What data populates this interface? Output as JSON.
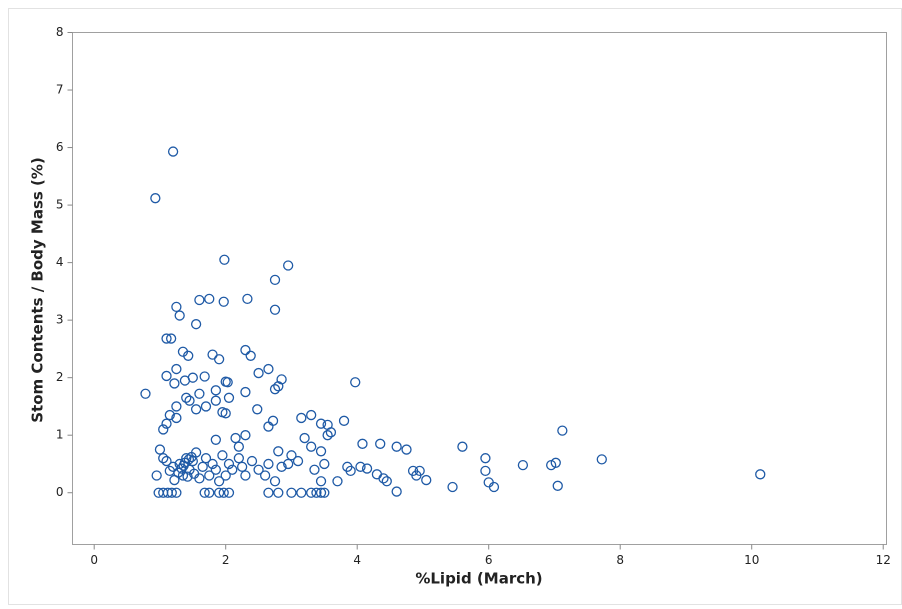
{
  "chart_data": {
    "type": "scatter",
    "x_label": "%Lipid (March)",
    "y_label": "Stom Contents / Body Mass (%)",
    "color": "#1f5aa6",
    "xlim": [
      -0.33,
      12.05
    ],
    "ylim": [
      -0.9,
      8
    ],
    "xticks": [
      0,
      2,
      4,
      6,
      8,
      10,
      12
    ],
    "yticks": [
      0,
      1,
      2,
      3,
      4,
      5,
      6,
      7,
      8
    ],
    "x": [
      0.93,
      1.2,
      1.98,
      2.95,
      2.75,
      2.33,
      1.25,
      1.3,
      1.6,
      1.75,
      1.97,
      2.75,
      1.55,
      1.1,
      1.17,
      1.35,
      1.43,
      1.8,
      1.9,
      2.3,
      2.38,
      2.65,
      2.5,
      1.25,
      1.1,
      1.5,
      1.68,
      2.0,
      2.03,
      1.22,
      1.38,
      2.8,
      2.85,
      2.75,
      0.78,
      3.97,
      2.3,
      1.85,
      1.6,
      1.4,
      1.45,
      1.85,
      2.05,
      1.25,
      1.7,
      1.55,
      2.48,
      1.95,
      2.0,
      1.15,
      1.25,
      3.3,
      3.15,
      3.8,
      2.72,
      1.1,
      1.05,
      2.65,
      3.45,
      3.55,
      7.12,
      3.55,
      3.6,
      2.15,
      2.3,
      1.85,
      3.2,
      4.08,
      4.35,
      4.6,
      4.75,
      5.6,
      5.95,
      3.0,
      3.3,
      3.45,
      2.8,
      2.2,
      1.0,
      1.05,
      0.95,
      1.1,
      1.2,
      1.3,
      1.35,
      1.4,
      1.45,
      1.5,
      1.55,
      1.6,
      1.65,
      1.7,
      1.75,
      1.8,
      1.85,
      1.9,
      1.95,
      2.0,
      2.05,
      2.1,
      2.2,
      2.25,
      2.3,
      2.4,
      2.5,
      2.6,
      2.65,
      2.75,
      2.85,
      2.95,
      3.1,
      3.35,
      3.45,
      3.5,
      3.7,
      3.85,
      3.9,
      4.05,
      4.15,
      4.3,
      4.4,
      4.45,
      4.6,
      4.85,
      4.9,
      4.95,
      5.05,
      5.45,
      5.95,
      6.0,
      6.08,
      6.52,
      6.95,
      7.02,
      7.05,
      7.72,
      10.13,
      0.98,
      1.05,
      1.12,
      1.18,
      1.25,
      1.68,
      1.75,
      1.9,
      1.97,
      2.05,
      2.65,
      2.8,
      3.0,
      3.15,
      3.3,
      3.38,
      3.45,
      3.5,
      1.28,
      1.33,
      1.38,
      1.42,
      1.48,
      1.22,
      1.15,
      1.52,
      1.36,
      1.44
    ],
    "values": [
      5.12,
      5.93,
      4.05,
      3.95,
      3.7,
      3.37,
      3.23,
      3.08,
      3.35,
      3.37,
      3.32,
      3.18,
      2.93,
      2.68,
      2.68,
      2.45,
      2.38,
      2.4,
      2.32,
      2.48,
      2.38,
      2.15,
      2.08,
      2.15,
      2.03,
      2.0,
      2.02,
      1.93,
      1.92,
      1.9,
      1.95,
      1.85,
      1.97,
      1.8,
      1.72,
      1.92,
      1.75,
      1.78,
      1.72,
      1.65,
      1.6,
      1.6,
      1.65,
      1.5,
      1.5,
      1.45,
      1.45,
      1.4,
      1.38,
      1.35,
      1.3,
      1.35,
      1.3,
      1.25,
      1.25,
      1.2,
      1.1,
      1.15,
      1.2,
      1.18,
      1.08,
      1.0,
      1.05,
      0.95,
      1.0,
      0.92,
      0.95,
      0.85,
      0.85,
      0.8,
      0.75,
      0.8,
      0.6,
      0.65,
      0.8,
      0.72,
      0.72,
      0.8,
      0.75,
      0.6,
      0.3,
      0.55,
      0.45,
      0.5,
      0.3,
      0.6,
      0.4,
      0.55,
      0.7,
      0.25,
      0.45,
      0.6,
      0.3,
      0.5,
      0.4,
      0.2,
      0.65,
      0.3,
      0.5,
      0.4,
      0.6,
      0.45,
      0.3,
      0.55,
      0.4,
      0.3,
      0.5,
      0.2,
      0.45,
      0.5,
      0.55,
      0.4,
      0.2,
      0.5,
      0.2,
      0.45,
      0.38,
      0.45,
      0.42,
      0.32,
      0.25,
      0.2,
      0.02,
      0.38,
      0.3,
      0.38,
      0.22,
      0.1,
      0.38,
      0.18,
      0.1,
      0.48,
      0.48,
      0.52,
      0.12,
      0.58,
      0.32,
      0,
      0,
      0,
      0,
      0,
      0,
      0,
      0,
      0,
      0,
      0,
      0,
      0,
      0,
      0,
      0,
      0,
      0,
      0.35,
      0.42,
      0.52,
      0.28,
      0.62,
      0.22,
      0.38,
      0.33,
      0.47,
      0.58
    ]
  }
}
